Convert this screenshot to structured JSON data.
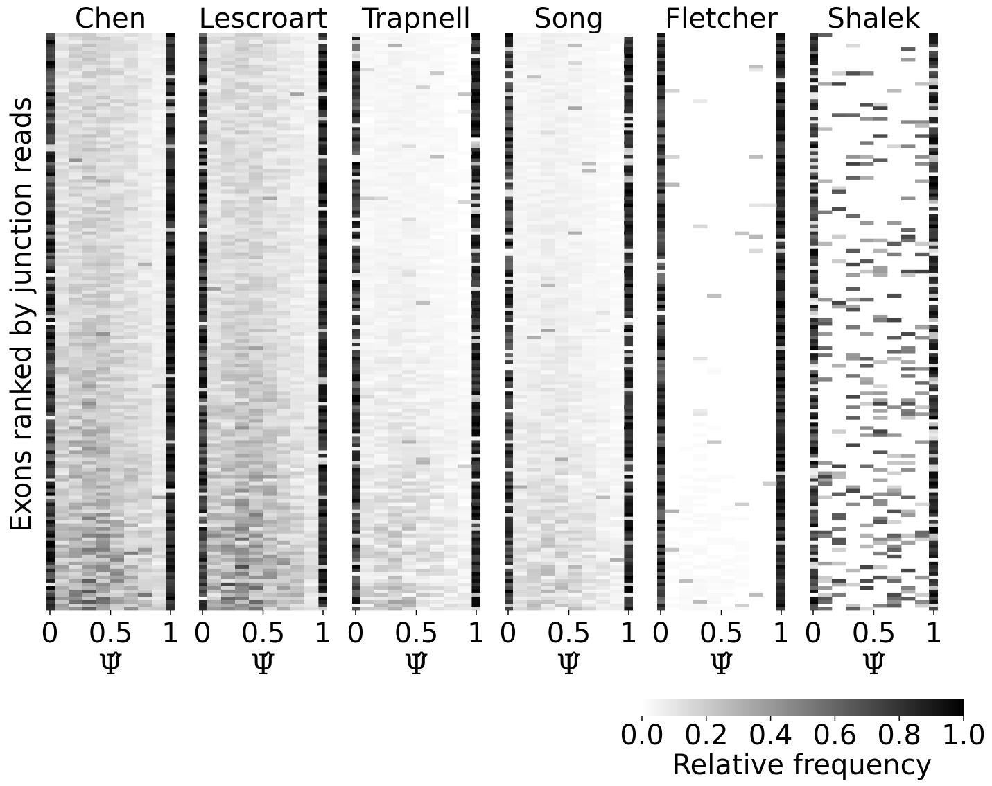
{
  "chart_data": {
    "type": "heatmap",
    "ylabel": "Exons ranked by junction reads",
    "colorbar": {
      "label": "Relative frequency",
      "range": [
        0.0,
        1.0
      ],
      "ticks": [
        "0.0",
        "0.2",
        "0.4",
        "0.6",
        "0.8",
        "1.0"
      ],
      "colormap": "white-to-black"
    },
    "x_ticks": [
      "0",
      "0.5",
      "1"
    ],
    "xlabel": "Ψ̂",
    "bins": 8,
    "panels": [
      {
        "title": "Chen",
        "edge_density": 0.95,
        "middle_level": 0.22,
        "bottom_increase": 0.55,
        "sparse": false
      },
      {
        "title": "Lescroart",
        "edge_density": 0.93,
        "middle_level": 0.2,
        "bottom_increase": 0.6,
        "sparse": false
      },
      {
        "title": "Trapnell",
        "edge_density": 0.85,
        "middle_level": 0.05,
        "bottom_increase": 0.35,
        "sparse": false
      },
      {
        "title": "Song",
        "edge_density": 0.8,
        "middle_level": 0.07,
        "bottom_increase": 0.3,
        "sparse": false
      },
      {
        "title": "Fletcher",
        "edge_density": 0.97,
        "middle_level": 0.01,
        "bottom_increase": 0.03,
        "sparse": false
      },
      {
        "title": "Shalek",
        "edge_density": 0.7,
        "middle_level": 0.03,
        "bottom_increase": 0.4,
        "sparse": true
      }
    ]
  }
}
